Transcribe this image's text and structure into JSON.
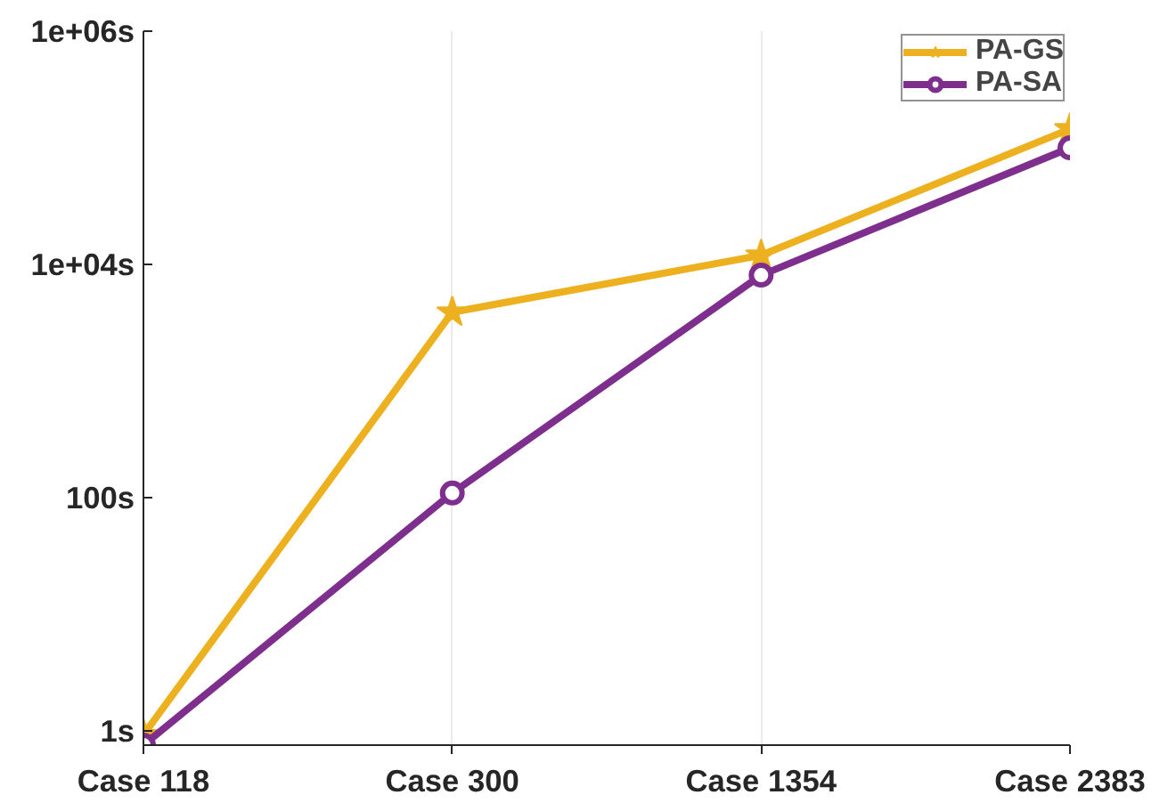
{
  "chart_data": {
    "type": "line",
    "categories": [
      "Case 118",
      "Case 300",
      "Case 1354",
      "Case 2383"
    ],
    "series": [
      {
        "name": "PA-GS",
        "color": "#edb120",
        "marker": "star",
        "values": [
          0.93,
          3900,
          12000,
          145000
        ]
      },
      {
        "name": "PA-SA",
        "color": "#7e2f8e",
        "marker": "circle",
        "values": [
          0.76,
          110,
          8100,
          100000
        ]
      }
    ],
    "log": "y",
    "ylim": [
      0.76,
      1000000
    ],
    "yticks": [
      {
        "value": 1,
        "label": "1s"
      },
      {
        "value": 100,
        "label": "100s"
      },
      {
        "value": 10000,
        "label": "1e+04s"
      },
      {
        "value": 1000000,
        "label": "1e+06s"
      }
    ],
    "grid": "x",
    "legend": "top right",
    "line_style": "solid"
  }
}
